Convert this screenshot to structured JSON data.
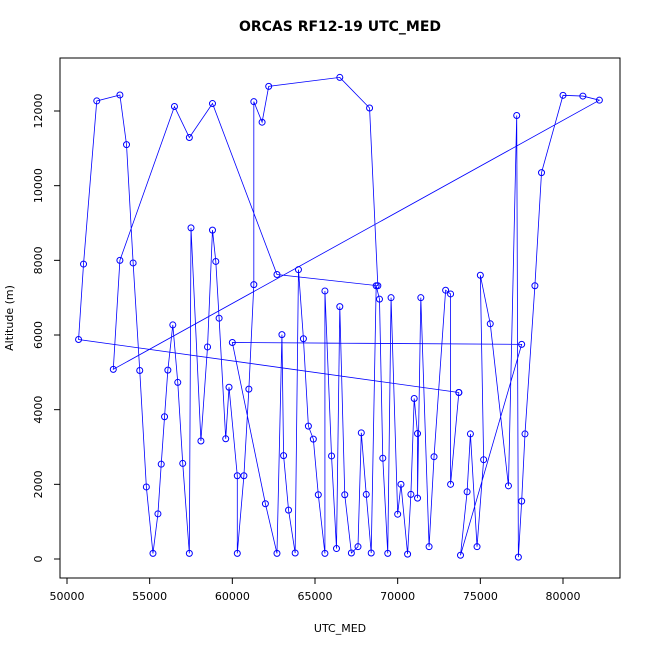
{
  "chart_data": {
    "type": "line",
    "title": "ORCAS RF12-19 UTC_MED",
    "x_label": "UTC_MED",
    "y_label": "Altitude (m)",
    "color": "#0000ff",
    "x": [
      73700,
      50700,
      51000,
      51800,
      53200,
      53600,
      54000,
      54400,
      54800,
      55200,
      55500,
      55700,
      55900,
      56100,
      56400,
      56700,
      57000,
      57400,
      57500,
      58100,
      58500,
      58800,
      59000,
      59200,
      59600,
      59800,
      60300,
      60300,
      60700,
      61000,
      61300,
      61300,
      61800,
      62200,
      66500,
      68300,
      68800,
      62700,
      58800,
      57400,
      56500,
      53200,
      52800,
      82200,
      81200,
      80000,
      78700,
      78300,
      77700,
      77500,
      77300,
      77200,
      76700,
      75600,
      75000,
      75200,
      74800,
      74400,
      74200,
      73800,
      77500,
      60000,
      62000,
      62700,
      63000,
      63100,
      63400,
      63800,
      64000,
      64300,
      64600,
      64900,
      65200,
      65600,
      65600,
      66000,
      66300,
      66500,
      66800,
      67200,
      67600,
      67800,
      68100,
      68400,
      68700,
      68900,
      69100,
      69400,
      69600,
      70000,
      70200,
      70600,
      70800,
      71000,
      71200,
      71200,
      71400,
      71900,
      72200,
      72900,
      73200,
      73200,
      73700
    ],
    "values": [
      4460,
      5880,
      7900,
      12270,
      12430,
      11100,
      7930,
      5050,
      1930,
      150,
      1210,
      2540,
      3810,
      5060,
      6270,
      4730,
      2560,
      150,
      8870,
      3160,
      5680,
      8810,
      7970,
      6450,
      3220,
      4600,
      2230,
      150,
      2230,
      4550,
      7350,
      12250,
      11700,
      12660,
      12900,
      12080,
      7320,
      7620,
      12200,
      11290,
      12120,
      8000,
      5080,
      12290,
      12400,
      12420,
      10350,
      7320,
      3350,
      1550,
      50,
      11880,
      1960,
      6300,
      7600,
      2660,
      330,
      3350,
      1800,
      100,
      5750,
      5800,
      1480,
      150,
      6010,
      2770,
      1310,
      160,
      7750,
      5900,
      3560,
      3210,
      1720,
      150,
      7180,
      2760,
      280,
      6760,
      1720,
      160,
      330,
      3380,
      1730,
      160,
      7320,
      6960,
      2700,
      150,
      7000,
      1200,
      2000,
      130,
      1730,
      4300,
      3360,
      1630,
      7000,
      330,
      2740,
      7200,
      7100,
      2000,
      4460
    ],
    "xlim": [
      49577,
      83447
    ],
    "ylim": [
      -509,
      13420
    ],
    "xticks": [
      50000,
      55000,
      60000,
      65000,
      70000,
      75000,
      80000
    ],
    "yticks": [
      0,
      2000,
      4000,
      6000,
      8000,
      10000,
      12000
    ]
  }
}
